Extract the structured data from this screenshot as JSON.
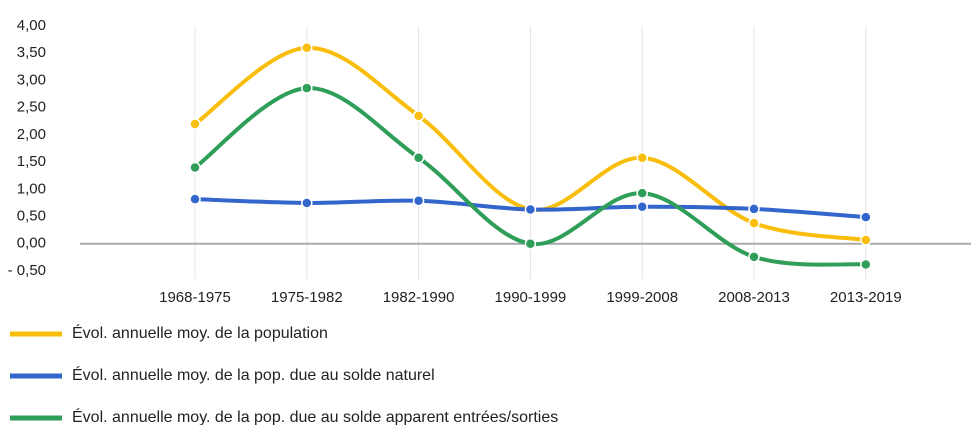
{
  "chart_data": {
    "type": "line",
    "categories": [
      "1968-1975",
      "1975-1982",
      "1982-1990",
      "1990-1999",
      "1999-2008",
      "2008-2013",
      "2013-2019"
    ],
    "series": [
      {
        "name": "Évol. annuelle moy. de la population",
        "color": "#f9bd0b",
        "values": [
          2.2,
          3.6,
          2.35,
          0.63,
          1.58,
          0.38,
          0.07
        ]
      },
      {
        "name": "Évol. annuelle moy. de la pop. due au solde naturel",
        "color": "#3366cc",
        "values": [
          0.82,
          0.75,
          0.79,
          0.63,
          0.68,
          0.64,
          0.49
        ]
      },
      {
        "name": "Évol. annuelle moy. de la pop. due au solde apparent entrées/sorties",
        "color": "#2e9e58",
        "values": [
          1.4,
          2.86,
          1.58,
          0.0,
          0.93,
          -0.24,
          -0.38
        ]
      }
    ],
    "ylim": [
      -0.5,
      4.0
    ],
    "yticks": [
      {
        "value": -0.5,
        "label": "- 0,50"
      },
      {
        "value": 0,
        "label": "0,00"
      },
      {
        "value": 0.5,
        "label": "0,50"
      },
      {
        "value": 1.0,
        "label": "1,00"
      },
      {
        "value": 1.5,
        "label": "1,50"
      },
      {
        "value": 2.0,
        "label": "2,00"
      },
      {
        "value": 2.5,
        "label": "2,50"
      },
      {
        "value": 3.0,
        "label": "3,00"
      },
      {
        "value": 3.5,
        "label": "3,50"
      },
      {
        "value": 4.0,
        "label": "4,00"
      }
    ],
    "legend": "bottom-left"
  }
}
